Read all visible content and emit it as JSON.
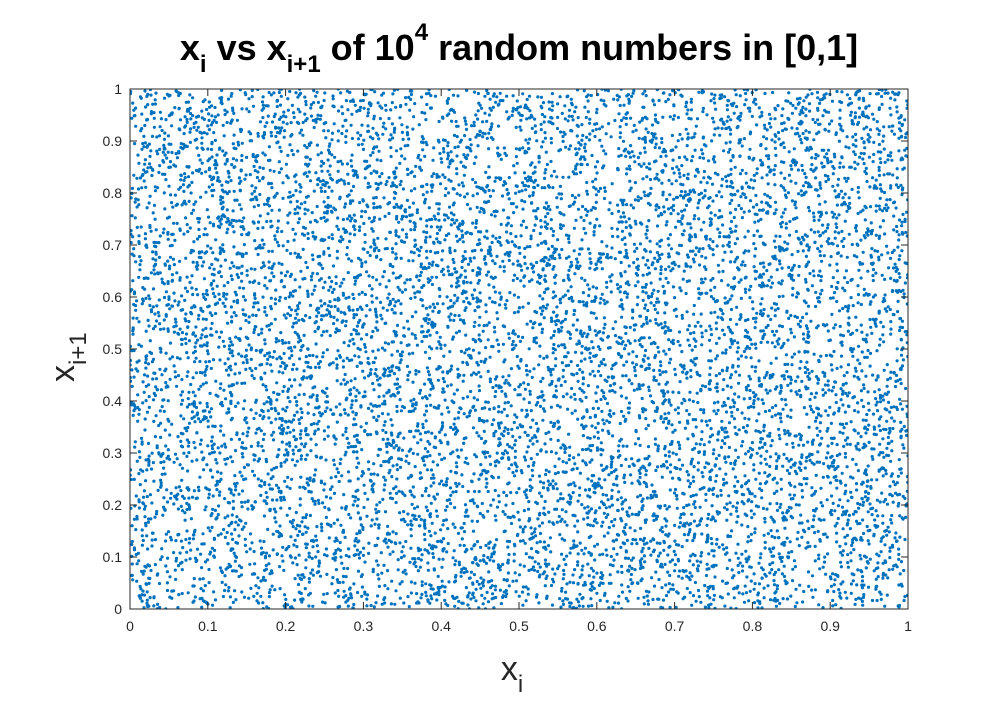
{
  "chart_data": {
    "type": "scatter",
    "title": {
      "base": "x",
      "sub1": "i",
      "mid": " vs x",
      "sub2": "i+1",
      "mid2": " of 10",
      "sup": "4",
      "end": " random numbers in [0,1]"
    },
    "xlabel": {
      "base": "x",
      "sub": "i"
    },
    "ylabel": {
      "base": "x",
      "sub": "i+1"
    },
    "xlim": [
      0,
      1
    ],
    "ylim": [
      0,
      1
    ],
    "xticks": [
      "0",
      "0.1",
      "0.2",
      "0.3",
      "0.4",
      "0.5",
      "0.6",
      "0.7",
      "0.8",
      "0.9",
      "1"
    ],
    "yticks": [
      "0",
      "0.1",
      "0.2",
      "0.3",
      "0.4",
      "0.5",
      "0.6",
      "0.7",
      "0.8",
      "0.9",
      "1"
    ],
    "grid": false,
    "point_count": 10000,
    "distribution": "uniform",
    "marker_color": "#0072BD"
  }
}
